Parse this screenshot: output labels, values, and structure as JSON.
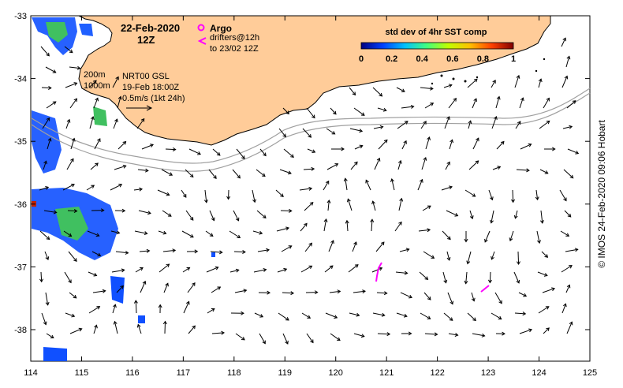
{
  "title": {
    "date": "22-Feb-2020",
    "time": "12Z"
  },
  "legend": {
    "argo_label": "Argo",
    "drifters_label": "drifters@12h",
    "drifters_sub": "to 23/02 12Z",
    "contour_a": "200m",
    "contour_b": "1000m",
    "product": "NRT00 GSL",
    "product_time": "19-Feb 18:00Z",
    "scale": "0.5m/s (1kt 24h)",
    "colorbar_title": "std dev of 4hr SST comp",
    "colorbar_ticks": [
      "0",
      "0.2",
      "0.4",
      "0.6",
      "0.8",
      "1"
    ],
    "colorbar_colors": [
      "#000080",
      "#0040ff",
      "#00c0ff",
      "#40ff80",
      "#c0ff00",
      "#ffc000",
      "#ff4000",
      "#800000"
    ]
  },
  "axes": {
    "x_ticks": [
      "114",
      "115",
      "116",
      "117",
      "118",
      "119",
      "120",
      "121",
      "122",
      "123",
      "124",
      "125"
    ],
    "y_ticks": [
      "-33",
      "-34",
      "-35",
      "-36",
      "-37",
      "-38"
    ]
  },
  "credit": "© IMOS 24-Feb-2020 09:06 Hobart",
  "colors": {
    "land": "#ffcc99",
    "argo": "#ff00ff",
    "isobath": "#a0a0a0"
  }
}
